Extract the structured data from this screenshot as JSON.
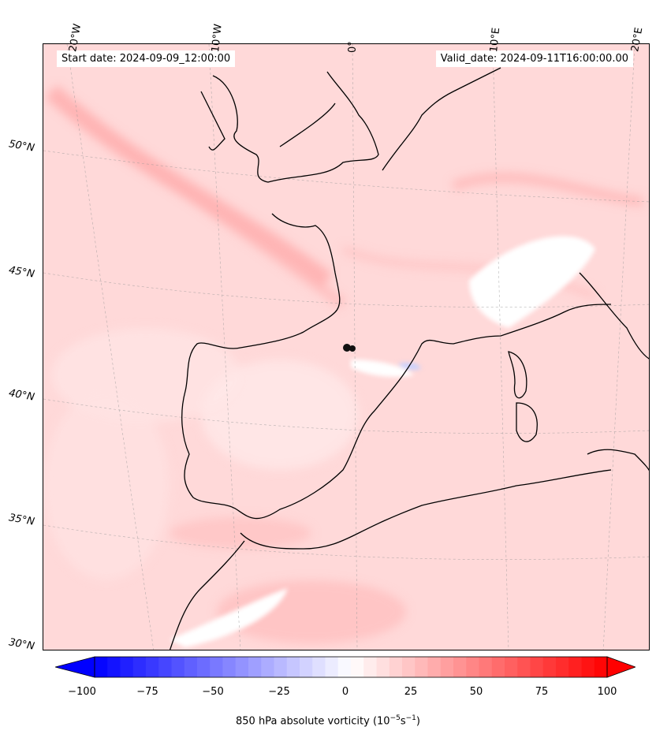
{
  "map": {
    "start_date": "Start date: 2024-09-09_12:00:00",
    "valid_date": "Valid_date: 2024-09-11T16:00:00.00",
    "lon_labels": [
      "20°W",
      "10°W",
      "0°",
      "10°E",
      "20°E"
    ],
    "lat_labels": [
      "50°N",
      "45°N",
      "40°N",
      "35°N",
      "30°N"
    ],
    "field": "850 hPa absolute vorticity",
    "background_color": "#ffd9d9",
    "coastline_color": "#000000"
  },
  "colorbar": {
    "label": "850 hPa absolute vorticity (10",
    "label_exp1": "−5",
    "label_mid": "s",
    "label_exp2": "−1",
    "label_end": ")",
    "ticks": [
      "−100",
      "−75",
      "−50",
      "−25",
      "0",
      "25",
      "50",
      "75",
      "100"
    ],
    "min": -100,
    "max": 100,
    "colormap": "bwr",
    "low_color": "#0000ff",
    "high_color": "#ff0000"
  }
}
